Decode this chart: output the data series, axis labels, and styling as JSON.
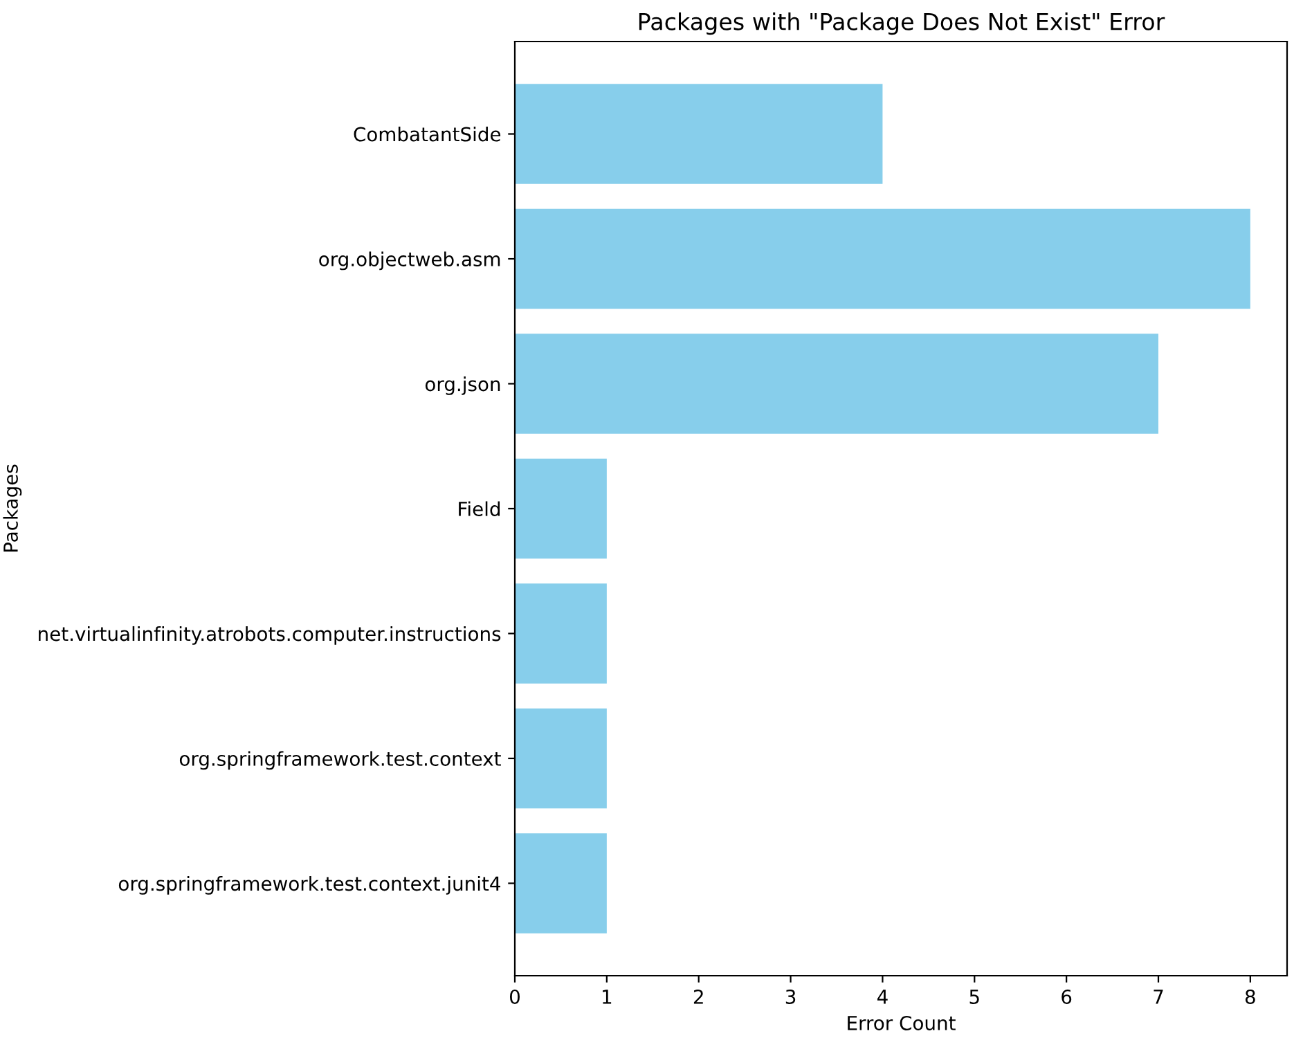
{
  "chart_data": {
    "type": "bar",
    "orientation": "horizontal",
    "title": "Packages with \"Package Does Not Exist\" Error",
    "xlabel": "Error Count",
    "ylabel": "Packages",
    "categories": [
      "CombatantSide",
      "org.objectweb.asm",
      "org.json",
      "Field",
      "net.virtualinfinity.atrobots.computer.instructions",
      "org.springframework.test.context",
      "org.springframework.test.context.junit4"
    ],
    "values": [
      4,
      8,
      7,
      1,
      1,
      1,
      1
    ],
    "color": "#87ceeb",
    "xlim": [
      0,
      8.4
    ],
    "xticks": [
      0,
      1,
      2,
      3,
      4,
      5,
      6,
      7,
      8
    ],
    "grid": false
  }
}
